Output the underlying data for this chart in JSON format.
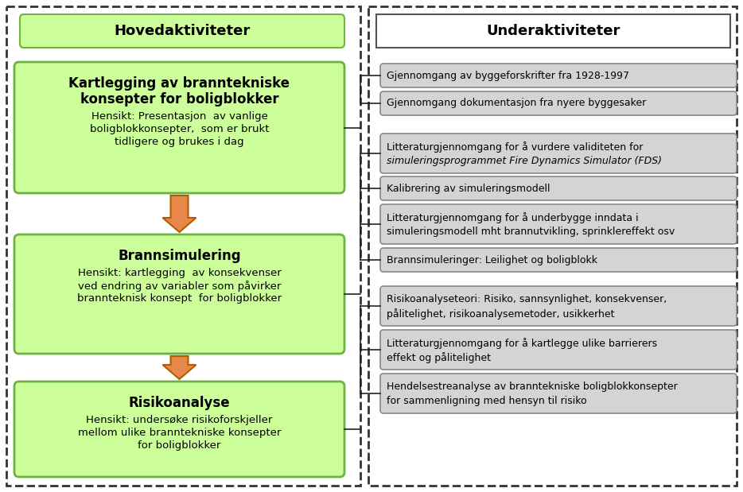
{
  "fig_width": 9.34,
  "fig_height": 6.19,
  "bg_color": "#ffffff",
  "left_panel": {
    "title": "Hovedaktiviteter",
    "title_fill": "#ccff99",
    "title_edge": "#6db33f",
    "boxes": [
      {
        "bold_text": "Kartlegging av branntekniske\nkonsepter for boligblokker",
        "normal_text": "Hensikt: Presentasjon  av vanlige\nboligblokkonsepter,  som er brukt\ntidligere og brukes i dag",
        "fill": "#ccff99",
        "edge": "#6db33f"
      },
      {
        "bold_text": "Brannsimulering",
        "normal_text": "Hensikt: kartlegging  av konsekvenser\nved endring av variabler som påvirker\nbrannteknisk konsept  for boligblokker",
        "fill": "#ccff99",
        "edge": "#6db33f"
      },
      {
        "bold_text": "Risikoanalyse",
        "normal_text": "Hensikt: undersøke risikoforskjeller\nmellom ulike branntekniske konsepter\nfor boligblokker",
        "fill": "#ccff99",
        "edge": "#6db33f"
      }
    ]
  },
  "right_panel": {
    "title": "Underaktiviteter",
    "title_fill": "#ffffff",
    "title_edge": "#555555",
    "boxes": [
      {
        "text": "Gjennomgang av byggeforskrifter fra 1928-1997",
        "lines": 1,
        "italic_from": -1
      },
      {
        "text": "Gjennomgang dokumentasjon fra nyere byggesaker",
        "lines": 1,
        "italic_from": -1
      },
      {
        "text": "Litteraturgjennomgang for å vurdere validiteten for\nsimuleringsprogrammet Fire Dynamics Simulator (FDS)",
        "lines": 2,
        "italic_from": 1
      },
      {
        "text": "Kalibrering av simuleringsmodell",
        "lines": 1,
        "italic_from": -1
      },
      {
        "text": "Litteraturgjennomgang for å underbygge inndata i\nsimuleringsmodell mht brannutvikling, sprinklereffekt osv",
        "lines": 2,
        "italic_from": -1
      },
      {
        "text": "Brannsimuleringer: Leilighet og boligblokk",
        "lines": 1,
        "italic_from": -1
      },
      {
        "text": "Risikoanalyseteori: Risiko, sannsynlighet, konsekvenser,\npålitelighet, risikoanalysemetoder, usikkerhet",
        "lines": 2,
        "italic_from": -1
      },
      {
        "text": "Litteraturgjennomgang for å kartlegge ulike barrierers\neffekt og pålitelighet",
        "lines": 2,
        "italic_from": -1
      },
      {
        "text": "Hendelsestreanalyse av branntekniske boligblokkonsepter\nfor sammenligning med hensyn til risiko",
        "lines": 2,
        "italic_from": -1
      }
    ],
    "box_fill": "#d4d4d4",
    "box_edge": "#888888"
  },
  "arrow_fill": "#e8874a",
  "arrow_edge": "#b35c00",
  "connector_color": "#222222"
}
